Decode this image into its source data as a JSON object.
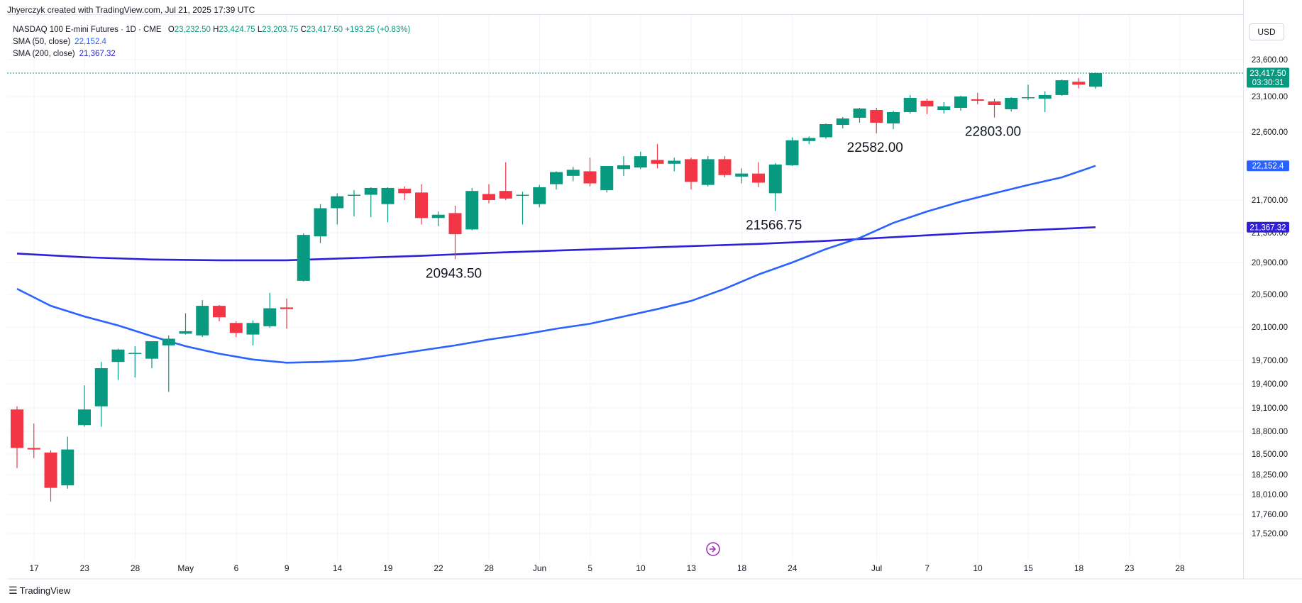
{
  "header": {
    "created_by": "Jhyerczyk created with TradingView.com, Jul 21, 2025 17:39 UTC",
    "symbol": "NASDAQ 100 E-mini Futures · 1D · CME",
    "ohlc": {
      "o_label": "O",
      "o": "23,232.50",
      "h_label": "H",
      "h": "23,424.75",
      "l_label": "L",
      "l": "23,203.75",
      "c_label": "C",
      "c": "23,417.50",
      "change": "+193.25 (+0.83%)"
    },
    "sma50_label": "SMA (50, close)",
    "sma50_value": "22,152.4",
    "sma200_label": "SMA (200, close)",
    "sma200_value": "21,367.32"
  },
  "currency": "USD",
  "footer": {
    "brand": "TradingView"
  },
  "chart_data": {
    "type": "candlestick",
    "colors": {
      "up": "#089981",
      "down": "#f23645",
      "sma50": "#2962ff",
      "sma200": "#2f1fd6",
      "last_price_line": "#089981"
    },
    "y_ticks": [
      23600,
      23100,
      22600,
      21700,
      21300,
      20900,
      20500,
      20100,
      19700,
      19400,
      19100,
      18800,
      18500,
      18250,
      18010,
      17760,
      17520
    ],
    "y_tick_labels": [
      "23,600.00",
      "23,100.00",
      "22,600.00",
      "21,700.00",
      "21,300.00",
      "20,900.00",
      "20,500.00",
      "20,100.00",
      "19,700.00",
      "19,400.00",
      "19,100.00",
      "18,800.00",
      "18,500.00",
      "18,250.00",
      "18,010.00",
      "17,760.00",
      "17,520.00"
    ],
    "x_tick_labels": [
      {
        "label": "17",
        "slot": 1.5
      },
      {
        "label": "23",
        "slot": 4.5
      },
      {
        "label": "28",
        "slot": 7.5
      },
      {
        "label": "May",
        "slot": 10.5
      },
      {
        "label": "6",
        "slot": 13.5
      },
      {
        "label": "9",
        "slot": 16.5
      },
      {
        "label": "14",
        "slot": 19.5
      },
      {
        "label": "19",
        "slot": 22.5
      },
      {
        "label": "22",
        "slot": 25.5
      },
      {
        "label": "28",
        "slot": 28.5
      },
      {
        "label": "Jun",
        "slot": 31.5
      },
      {
        "label": "5",
        "slot": 34.5
      },
      {
        "label": "10",
        "slot": 37.5
      },
      {
        "label": "13",
        "slot": 40.5
      },
      {
        "label": "18",
        "slot": 43.5
      },
      {
        "label": "24",
        "slot": 46.5
      },
      {
        "label": "Jul",
        "slot": 51.5
      },
      {
        "label": "7",
        "slot": 54.5
      },
      {
        "label": "10",
        "slot": 57.5
      },
      {
        "label": "15",
        "slot": 60.5
      },
      {
        "label": "18",
        "slot": 63.5
      },
      {
        "label": "23",
        "slot": 66.5
      },
      {
        "label": "28",
        "slot": 69.5
      }
    ],
    "candles": [
      {
        "o": 19080,
        "h": 19120,
        "l": 18330,
        "c": 18580
      },
      {
        "o": 18580,
        "h": 18900,
        "l": 18450,
        "c": 18560
      },
      {
        "o": 18520,
        "h": 18550,
        "l": 17920,
        "c": 18090
      },
      {
        "o": 18120,
        "h": 18730,
        "l": 18080,
        "c": 18560
      },
      {
        "o": 18880,
        "h": 19380,
        "l": 18860,
        "c": 19080
      },
      {
        "o": 19120,
        "h": 19680,
        "l": 18860,
        "c": 19600
      },
      {
        "o": 19680,
        "h": 19840,
        "l": 19450,
        "c": 19830
      },
      {
        "o": 19780,
        "h": 19870,
        "l": 19480,
        "c": 19790
      },
      {
        "o": 19720,
        "h": 19930,
        "l": 19600,
        "c": 19930
      },
      {
        "o": 19880,
        "h": 20000,
        "l": 19300,
        "c": 19960
      },
      {
        "o": 20020,
        "h": 20270,
        "l": 20010,
        "c": 20050
      },
      {
        "o": 20000,
        "h": 20430,
        "l": 19980,
        "c": 20360
      },
      {
        "o": 20360,
        "h": 20370,
        "l": 20170,
        "c": 20220
      },
      {
        "o": 20150,
        "h": 20170,
        "l": 19980,
        "c": 20030
      },
      {
        "o": 20010,
        "h": 20180,
        "l": 19880,
        "c": 20150
      },
      {
        "o": 20110,
        "h": 20520,
        "l": 20090,
        "c": 20330
      },
      {
        "o": 20340,
        "h": 20450,
        "l": 20080,
        "c": 20320
      },
      {
        "o": 20670,
        "h": 21290,
        "l": 20660,
        "c": 21270
      },
      {
        "o": 21250,
        "h": 21650,
        "l": 21160,
        "c": 21600
      },
      {
        "o": 21600,
        "h": 21790,
        "l": 21400,
        "c": 21750
      },
      {
        "o": 21760,
        "h": 21830,
        "l": 21500,
        "c": 21770
      },
      {
        "o": 21770,
        "h": 21870,
        "l": 21490,
        "c": 21860
      },
      {
        "o": 21650,
        "h": 21870,
        "l": 21430,
        "c": 21860
      },
      {
        "o": 21850,
        "h": 21880,
        "l": 21700,
        "c": 21790
      },
      {
        "o": 21800,
        "h": 21910,
        "l": 21400,
        "c": 21480
      },
      {
        "o": 21480,
        "h": 21560,
        "l": 21380,
        "c": 21520
      },
      {
        "o": 21540,
        "h": 21630,
        "l": 20943.5,
        "c": 21280
      },
      {
        "o": 21340,
        "h": 21860,
        "l": 21330,
        "c": 21820
      },
      {
        "o": 21780,
        "h": 21910,
        "l": 21660,
        "c": 21700
      },
      {
        "o": 21820,
        "h": 22200,
        "l": 21700,
        "c": 21720
      },
      {
        "o": 21760,
        "h": 21810,
        "l": 21400,
        "c": 21770
      },
      {
        "o": 21650,
        "h": 21900,
        "l": 21610,
        "c": 21870
      },
      {
        "o": 21910,
        "h": 22080,
        "l": 21840,
        "c": 22070
      },
      {
        "o": 22020,
        "h": 22140,
        "l": 21950,
        "c": 22100
      },
      {
        "o": 22080,
        "h": 22260,
        "l": 21880,
        "c": 21920
      },
      {
        "o": 21830,
        "h": 22150,
        "l": 21800,
        "c": 22150
      },
      {
        "o": 22110,
        "h": 22280,
        "l": 22020,
        "c": 22160
      },
      {
        "o": 22130,
        "h": 22340,
        "l": 22110,
        "c": 22280
      },
      {
        "o": 22230,
        "h": 22440,
        "l": 22120,
        "c": 22180
      },
      {
        "o": 22180,
        "h": 22260,
        "l": 22080,
        "c": 22220
      },
      {
        "o": 22240,
        "h": 22260,
        "l": 21840,
        "c": 21940
      },
      {
        "o": 21900,
        "h": 22280,
        "l": 21880,
        "c": 22240
      },
      {
        "o": 22240,
        "h": 22280,
        "l": 22000,
        "c": 22030
      },
      {
        "o": 22010,
        "h": 22120,
        "l": 21920,
        "c": 22050
      },
      {
        "o": 22050,
        "h": 22200,
        "l": 21870,
        "c": 21930
      },
      {
        "o": 21790,
        "h": 22190,
        "l": 21566.75,
        "c": 22170
      },
      {
        "o": 22160,
        "h": 22530,
        "l": 22150,
        "c": 22490
      },
      {
        "o": 22480,
        "h": 22540,
        "l": 22440,
        "c": 22520
      },
      {
        "o": 22530,
        "h": 22720,
        "l": 22510,
        "c": 22710
      },
      {
        "o": 22700,
        "h": 22810,
        "l": 22650,
        "c": 22790
      },
      {
        "o": 22800,
        "h": 22940,
        "l": 22730,
        "c": 22930
      },
      {
        "o": 22910,
        "h": 22940,
        "l": 22582,
        "c": 22730
      },
      {
        "o": 22720,
        "h": 22900,
        "l": 22640,
        "c": 22880
      },
      {
        "o": 22880,
        "h": 23120,
        "l": 22860,
        "c": 23080
      },
      {
        "o": 23040,
        "h": 23070,
        "l": 22850,
        "c": 22960
      },
      {
        "o": 22910,
        "h": 23020,
        "l": 22860,
        "c": 22960
      },
      {
        "o": 22940,
        "h": 23110,
        "l": 22900,
        "c": 23100
      },
      {
        "o": 23060,
        "h": 23150,
        "l": 22990,
        "c": 23040
      },
      {
        "o": 23030,
        "h": 23070,
        "l": 22803,
        "c": 22980
      },
      {
        "o": 22920,
        "h": 23090,
        "l": 22890,
        "c": 23080
      },
      {
        "o": 23080,
        "h": 23260,
        "l": 23050,
        "c": 23090
      },
      {
        "o": 23070,
        "h": 23170,
        "l": 22880,
        "c": 23120
      },
      {
        "o": 23120,
        "h": 23330,
        "l": 23110,
        "c": 23320
      },
      {
        "o": 23300,
        "h": 23350,
        "l": 23210,
        "c": 23260
      },
      {
        "o": 23232.5,
        "h": 23424.75,
        "l": 23203.75,
        "c": 23417.5
      }
    ],
    "sma50": [
      [
        0,
        20570
      ],
      [
        2,
        20360
      ],
      [
        4,
        20230
      ],
      [
        6,
        20120
      ],
      [
        8,
        19990
      ],
      [
        10,
        19870
      ],
      [
        12,
        19780
      ],
      [
        14,
        19710
      ],
      [
        16,
        19670
      ],
      [
        18,
        19680
      ],
      [
        20,
        19700
      ],
      [
        22,
        19760
      ],
      [
        24,
        19820
      ],
      [
        26,
        19880
      ],
      [
        28,
        19950
      ],
      [
        30,
        20010
      ],
      [
        32,
        20080
      ],
      [
        34,
        20140
      ],
      [
        36,
        20230
      ],
      [
        38,
        20320
      ],
      [
        40,
        20420
      ],
      [
        42,
        20570
      ],
      [
        44,
        20750
      ],
      [
        46,
        20900
      ],
      [
        48,
        21080
      ],
      [
        50,
        21230
      ],
      [
        52,
        21420
      ],
      [
        54,
        21560
      ],
      [
        56,
        21680
      ],
      [
        58,
        21790
      ],
      [
        60,
        21900
      ],
      [
        62,
        22000
      ],
      [
        64,
        22152.4
      ]
    ],
    "sma200": [
      [
        0,
        21020
      ],
      [
        4,
        20970
      ],
      [
        8,
        20940
      ],
      [
        12,
        20930
      ],
      [
        16,
        20930
      ],
      [
        20,
        20960
      ],
      [
        24,
        20990
      ],
      [
        28,
        21030
      ],
      [
        32,
        21060
      ],
      [
        36,
        21090
      ],
      [
        40,
        21120
      ],
      [
        44,
        21150
      ],
      [
        48,
        21190
      ],
      [
        52,
        21240
      ],
      [
        56,
        21290
      ],
      [
        60,
        21330
      ],
      [
        64,
        21367.32
      ]
    ],
    "price_labels": [
      {
        "text": "20943.50",
        "slot": 26
      },
      {
        "text": "21566.75",
        "slot": 45
      },
      {
        "text": "22582.00",
        "slot": 51
      },
      {
        "text": "22803.00",
        "slot": 58
      }
    ],
    "last_price": {
      "value": 23417.5,
      "label": "23,417.50",
      "countdown": "03:30:31"
    },
    "sma50_tag": "22,152.4",
    "sma200_tag": "21,367.32",
    "grid": true
  }
}
